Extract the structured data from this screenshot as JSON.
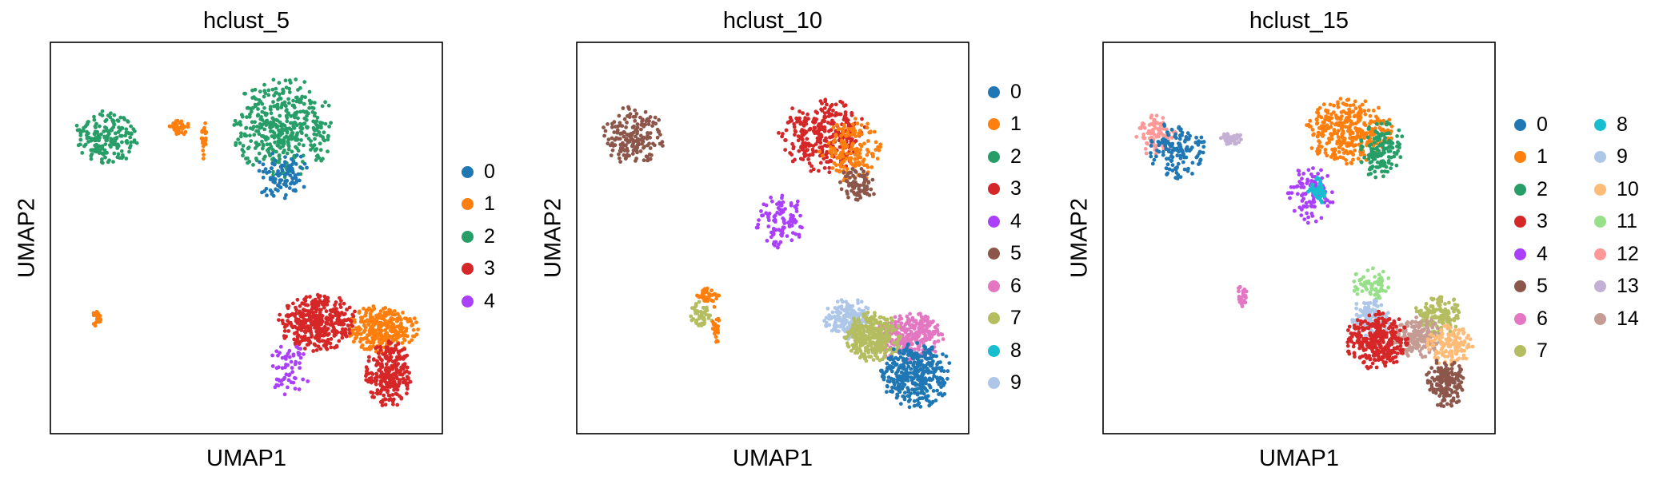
{
  "colors": [
    "#1f77b4",
    "#ff7f0e",
    "#279e68",
    "#d62728",
    "#aa40fc",
    "#8c564b",
    "#e377c2",
    "#b5bd61",
    "#17becf",
    "#aec7e8",
    "#ffbb78",
    "#98df8a",
    "#ff9896",
    "#c5b0d5",
    "#c49c94"
  ],
  "chart_data": [
    {
      "type": "scatter",
      "title": "hclust_5",
      "xlabel": "UMAP1",
      "ylabel": "UMAP2",
      "legend_position": "right",
      "legend_columns": 1,
      "categories": [
        "0",
        "1",
        "2",
        "3",
        "4"
      ],
      "grid": false,
      "axis_ticks": false,
      "clusters": [
        {
          "x": 6.0,
          "y": 8.2,
          "rx": 1.3,
          "ry": 1.2,
          "n": 420,
          "c": "2"
        },
        {
          "x": 1.1,
          "y": 8.0,
          "rx": 0.8,
          "ry": 0.7,
          "n": 180,
          "c": "2"
        },
        {
          "x": 5.8,
          "y": 6.9,
          "rx": 0.5,
          "ry": 0.6,
          "n": 60,
          "c": "0"
        },
        {
          "x": 6.3,
          "y": 7.0,
          "rx": 0.4,
          "ry": 0.5,
          "n": 40,
          "c": "0"
        },
        {
          "x": 0.8,
          "y": 3.1,
          "rx": 0.12,
          "ry": 0.18,
          "n": 20,
          "c": "1"
        },
        {
          "x": 3.1,
          "y": 8.2,
          "rx": 0.28,
          "ry": 0.18,
          "n": 40,
          "c": "1"
        },
        {
          "x": 3.8,
          "y": 7.9,
          "rx": 0.1,
          "ry": 0.5,
          "n": 30,
          "c": "1"
        },
        {
          "x": 8.8,
          "y": 2.8,
          "rx": 0.9,
          "ry": 0.6,
          "n": 300,
          "c": "1"
        },
        {
          "x": 7.0,
          "y": 3.0,
          "rx": 1.0,
          "ry": 0.7,
          "n": 380,
          "c": "3"
        },
        {
          "x": 9.0,
          "y": 1.6,
          "rx": 0.6,
          "ry": 0.8,
          "n": 260,
          "c": "3"
        },
        {
          "x": 6.2,
          "y": 1.7,
          "rx": 0.5,
          "ry": 0.7,
          "n": 60,
          "c": "4"
        }
      ]
    },
    {
      "type": "scatter",
      "title": "hclust_10",
      "xlabel": "UMAP1",
      "ylabel": "UMAP2",
      "legend_position": "right",
      "legend_columns": 1,
      "categories": [
        "0",
        "1",
        "2",
        "3",
        "4",
        "5",
        "6",
        "7",
        "8",
        "9"
      ],
      "grid": false,
      "axis_ticks": false,
      "clusters": [
        {
          "x": 6.4,
          "y": 8.0,
          "rx": 1.1,
          "ry": 0.9,
          "n": 300,
          "c": "3"
        },
        {
          "x": 7.2,
          "y": 7.6,
          "rx": 0.8,
          "ry": 0.8,
          "n": 160,
          "c": "1"
        },
        {
          "x": 5.2,
          "y": 5.7,
          "rx": 0.6,
          "ry": 0.7,
          "n": 100,
          "c": "4"
        },
        {
          "x": 7.4,
          "y": 6.7,
          "rx": 0.5,
          "ry": 0.4,
          "n": 80,
          "c": "5"
        },
        {
          "x": 1.1,
          "y": 8.0,
          "rx": 0.8,
          "ry": 0.7,
          "n": 180,
          "c": "5"
        },
        {
          "x": 3.0,
          "y": 3.2,
          "rx": 0.3,
          "ry": 0.35,
          "n": 50,
          "c": "7"
        },
        {
          "x": 3.2,
          "y": 3.7,
          "rx": 0.28,
          "ry": 0.18,
          "n": 40,
          "c": "1"
        },
        {
          "x": 3.4,
          "y": 2.9,
          "rx": 0.1,
          "ry": 0.5,
          "n": 30,
          "c": "1"
        },
        {
          "x": 8.8,
          "y": 2.6,
          "rx": 0.9,
          "ry": 0.6,
          "n": 300,
          "c": "6"
        },
        {
          "x": 7.1,
          "y": 3.1,
          "rx": 0.6,
          "ry": 0.5,
          "n": 160,
          "c": "9"
        },
        {
          "x": 7.8,
          "y": 2.6,
          "rx": 0.7,
          "ry": 0.6,
          "n": 320,
          "c": "7"
        },
        {
          "x": 9.0,
          "y": 1.6,
          "rx": 0.9,
          "ry": 0.8,
          "n": 360,
          "c": "0"
        }
      ]
    },
    {
      "type": "scatter",
      "title": "hclust_15",
      "xlabel": "UMAP1",
      "ylabel": "UMAP2",
      "legend_position": "right",
      "legend_columns": 2,
      "categories": [
        "0",
        "1",
        "2",
        "3",
        "4",
        "5",
        "6",
        "7",
        "8",
        "9",
        "10",
        "11",
        "12",
        "13",
        "14"
      ],
      "grid": false,
      "axis_ticks": false,
      "clusters": [
        {
          "x": 6.4,
          "y": 8.1,
          "rx": 1.1,
          "ry": 0.8,
          "n": 340,
          "c": "1"
        },
        {
          "x": 7.3,
          "y": 7.6,
          "rx": 0.6,
          "ry": 0.7,
          "n": 130,
          "c": "2"
        },
        {
          "x": 5.3,
          "y": 6.4,
          "rx": 0.6,
          "ry": 0.7,
          "n": 100,
          "c": "4"
        },
        {
          "x": 7.0,
          "y": 4.0,
          "rx": 0.5,
          "ry": 0.4,
          "n": 70,
          "c": "11"
        },
        {
          "x": 1.0,
          "y": 8.0,
          "rx": 0.5,
          "ry": 0.5,
          "n": 100,
          "c": "12"
        },
        {
          "x": 1.6,
          "y": 7.6,
          "rx": 0.7,
          "ry": 0.7,
          "n": 140,
          "c": "0"
        },
        {
          "x": 5.5,
          "y": 6.5,
          "rx": 0.25,
          "ry": 0.35,
          "n": 50,
          "c": "8"
        },
        {
          "x": 3.1,
          "y": 7.9,
          "rx": 0.3,
          "ry": 0.18,
          "n": 40,
          "c": "13"
        },
        {
          "x": 3.4,
          "y": 3.7,
          "rx": 0.12,
          "ry": 0.35,
          "n": 30,
          "c": "6"
        },
        {
          "x": 8.9,
          "y": 3.2,
          "rx": 0.6,
          "ry": 0.5,
          "n": 140,
          "c": "7"
        },
        {
          "x": 8.3,
          "y": 2.6,
          "rx": 0.6,
          "ry": 0.5,
          "n": 180,
          "c": "14"
        },
        {
          "x": 7.0,
          "y": 3.1,
          "rx": 0.5,
          "ry": 0.5,
          "n": 110,
          "c": "9"
        },
        {
          "x": 7.2,
          "y": 2.5,
          "rx": 0.8,
          "ry": 0.7,
          "n": 320,
          "c": "3"
        },
        {
          "x": 9.2,
          "y": 2.4,
          "rx": 0.6,
          "ry": 0.5,
          "n": 140,
          "c": "10"
        },
        {
          "x": 9.1,
          "y": 1.4,
          "rx": 0.5,
          "ry": 0.6,
          "n": 160,
          "c": "5"
        }
      ]
    }
  ]
}
